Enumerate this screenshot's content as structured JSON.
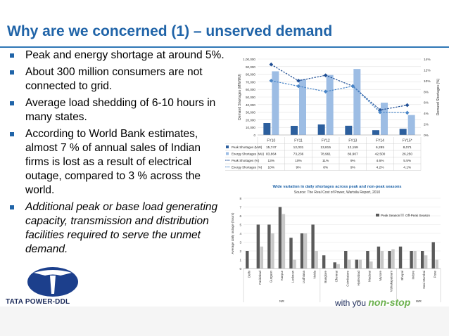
{
  "slide": {
    "title": "Why are we concerned (1) – unserved demand",
    "bullets": [
      {
        "text": "Peak and energy shortage at around 5%.",
        "italic": false
      },
      {
        "text": "About 300 million consumers are not connected to grid.",
        "italic": false
      },
      {
        "text": "Average load shedding of 6-10 hours in many states.",
        "italic": false
      },
      {
        "text": "According to World Bank estimates, almost 7 % of annual sales of Indian firms is lost as a result of electrical outage, compared to 3 % across the world.",
        "italic": false
      },
      {
        "text": "Additional peak or base load generating capacity, transmission and distribution facilities required to serve the unmet demand.",
        "italic": true
      }
    ],
    "logo_text": "TATA POWER-DDL",
    "tagline_prefix": "with you",
    "tagline_brand": "non-stop"
  },
  "colors": {
    "title": "#2064a8",
    "peak_bar": "#2c5f9e",
    "energy_bar": "#9dbde4",
    "peak_line": "#1f4e94",
    "energy_line": "#4a86c8",
    "bar_dark": "#5a5a5a",
    "bar_light": "#c8c8c8"
  },
  "chart_data": [
    {
      "type": "bar",
      "title": "",
      "categories": [
        "FY10",
        "FY11",
        "FY12",
        "FY13",
        "FY14",
        "FY15*"
      ],
      "ylabel": "Demand Shortages (MW/MU)",
      "y2label": "Demand Shortages (%)",
      "ylim": [
        0,
        100000
      ],
      "y_ticks": [
        "1,00,000",
        "90,000",
        "80,000",
        "70,000",
        "60,000",
        "50,000",
        "40,000",
        "30,000",
        "20,000",
        "10,000",
        "0"
      ],
      "y2lim": [
        0,
        14
      ],
      "y2_ticks": [
        "14%",
        "12%",
        "10%",
        "8%",
        "6%",
        "4%",
        "2%",
        "0%"
      ],
      "series": [
        {
          "name": "Peak Shortages (MW)",
          "kind": "bar",
          "values": [
            15747,
            12031,
            13815,
            12159,
            6285,
            8071
          ],
          "labels": [
            "15,747",
            "12,031",
            "13,815",
            "12,159",
            "6,285",
            "8,071"
          ]
        },
        {
          "name": "Energy Shortages (MU)",
          "kind": "bar",
          "values": [
            83864,
            73236,
            78961,
            86907,
            42500,
            26250
          ],
          "labels": [
            "83,864",
            "73,236",
            "78,961",
            "86,907",
            "42,500",
            "26,250"
          ]
        },
        {
          "name": "Peak Shortages (%)",
          "kind": "line",
          "axis": "y2",
          "values": [
            13,
            10,
            11,
            9,
            4.6,
            5.5
          ],
          "labels": [
            "13%",
            "10%",
            "11%",
            "9%",
            "4.6%",
            "5.5%"
          ]
        },
        {
          "name": "Energy Shortages (%)",
          "kind": "line",
          "axis": "y2",
          "values": [
            10,
            9,
            8,
            9,
            4.2,
            4.1
          ],
          "labels": [
            "10%",
            "9%",
            "8%",
            "9%",
            "4.2%",
            "4.1%"
          ]
        }
      ],
      "grid": true,
      "legend": "table-below"
    },
    {
      "type": "bar",
      "title": "Wide variation in daily shortages across peak and non-peak seasons",
      "subtitle": "Source: The Real Cost of Power, Wartsila Report, 2010",
      "ylabel": "Average daily outage (hours)",
      "ylim": [
        0,
        8
      ],
      "y_ticks": [
        "8",
        "7",
        "6",
        "5",
        "4",
        "3",
        "2",
        "1",
        "0"
      ],
      "categories": [
        "Delhi",
        "Faridabad",
        "Gurgaon",
        "Kanpur",
        "Lucknow",
        "Ludhiana",
        "Noida",
        "Banglore",
        "Chennai",
        "Coimbatore",
        "Hyderabad",
        "Madurai",
        "Mysore",
        "Vishakapatnam",
        "Bhopal",
        "Indore",
        "Navi Mumbai",
        "Pune"
      ],
      "regions": [
        {
          "label": "NR",
          "count": 7
        },
        {
          "label": "SR",
          "count": 7
        },
        {
          "label": "WR",
          "count": 4
        }
      ],
      "series": [
        {
          "name": "Peak Season",
          "values": [
            2,
            5,
            5,
            7,
            3.5,
            4,
            5,
            1.5,
            0.7,
            2,
            1,
            2,
            2.5,
            2,
            2.5,
            2,
            2,
            3
          ]
        },
        {
          "name": "Off-Peak Season",
          "values": [
            0,
            2.5,
            4,
            6.2,
            1,
            4,
            2,
            0,
            0.5,
            1,
            1,
            0.8,
            2,
            2.2,
            0,
            2,
            1.5,
            1
          ]
        }
      ],
      "grid": true,
      "legend": "top-right"
    }
  ]
}
